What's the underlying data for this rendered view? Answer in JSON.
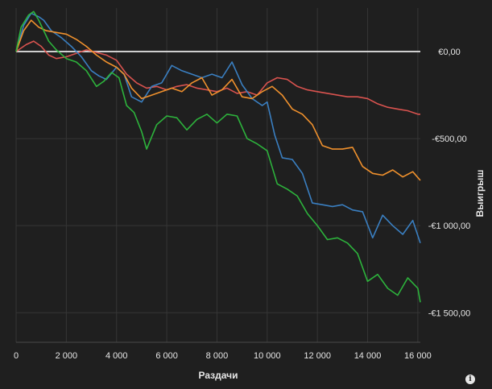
{
  "chart_data": {
    "type": "line",
    "title": "",
    "xlabel": "Раздачи",
    "ylabel": "Выигрыш",
    "xlim": [
      0,
      16100
    ],
    "ylim": [
      -1670,
      250
    ],
    "grid": true,
    "x_ticks": [
      0,
      2000,
      4000,
      6000,
      8000,
      10000,
      12000,
      14000,
      16000
    ],
    "x_tick_labels": [
      "0",
      "2 000",
      "4 000",
      "6 000",
      "8 000",
      "10 000",
      "12 000",
      "14 000",
      "16 000"
    ],
    "y_ticks": [
      0,
      -500,
      -1000,
      -1500
    ],
    "y_tick_labels": [
      "€0,00",
      "-€500,00",
      "-€1 000,00",
      "-€1 500,00"
    ],
    "zero_line_color": "#cfcfcf",
    "series": [
      {
        "color": "#d9534f",
        "x": [
          0,
          400,
          700,
          1000,
          1300,
          1600,
          2000,
          2400,
          2800,
          3200,
          3600,
          4000,
          4400,
          4800,
          5200,
          5600,
          6000,
          6400,
          6800,
          7200,
          7600,
          8000,
          8400,
          8800,
          9200,
          9600,
          10000,
          10400,
          10800,
          11200,
          11600,
          12000,
          12400,
          12800,
          13200,
          13600,
          14000,
          14400,
          14800,
          15200,
          15600,
          16000,
          16100
        ],
        "y": [
          0,
          40,
          60,
          30,
          -20,
          -40,
          -30,
          -10,
          10,
          -5,
          -20,
          -50,
          -130,
          -180,
          -210,
          -200,
          -220,
          -200,
          -190,
          -210,
          -220,
          -230,
          -210,
          -240,
          -230,
          -250,
          -180,
          -150,
          -160,
          -200,
          -220,
          -230,
          -240,
          -250,
          -260,
          -260,
          -270,
          -300,
          -320,
          -330,
          -340,
          -360,
          -360
        ]
      },
      {
        "color": "#3a7fc1",
        "x": [
          0,
          300,
          600,
          900,
          1100,
          1400,
          1800,
          2200,
          2600,
          3000,
          3300,
          3600,
          4000,
          4300,
          4600,
          5000,
          5400,
          5800,
          6200,
          6600,
          7000,
          7400,
          7800,
          8200,
          8600,
          9000,
          9400,
          9800,
          10000,
          10300,
          10600,
          11000,
          11400,
          11800,
          12200,
          12600,
          13000,
          13400,
          13800,
          14200,
          14600,
          15000,
          15400,
          15800,
          16100
        ],
        "y": [
          0,
          150,
          220,
          200,
          180,
          120,
          80,
          30,
          -30,
          -110,
          -140,
          -160,
          -90,
          -130,
          -260,
          -290,
          -200,
          -180,
          -80,
          -110,
          -130,
          -150,
          -130,
          -150,
          -60,
          -190,
          -270,
          -310,
          -290,
          -480,
          -610,
          -620,
          -700,
          -870,
          -880,
          -890,
          -880,
          -910,
          -920,
          -1070,
          -940,
          -1000,
          -1050,
          -970,
          -1100
        ]
      },
      {
        "color": "#f0912d",
        "x": [
          0,
          300,
          600,
          900,
          1200,
          1600,
          2000,
          2400,
          2800,
          3200,
          3600,
          4000,
          4300,
          4600,
          5000,
          5400,
          5800,
          6200,
          6600,
          7000,
          7400,
          7800,
          8200,
          8600,
          9000,
          9400,
          9800,
          10200,
          10600,
          11000,
          11400,
          11800,
          12200,
          12600,
          13000,
          13400,
          13800,
          14200,
          14600,
          15000,
          15400,
          15800,
          16100
        ],
        "y": [
          0,
          120,
          180,
          140,
          120,
          110,
          100,
          70,
          30,
          -20,
          -60,
          -90,
          -130,
          -210,
          -270,
          -250,
          -230,
          -210,
          -230,
          -180,
          -150,
          -250,
          -220,
          -160,
          -260,
          -270,
          -230,
          -200,
          -250,
          -330,
          -360,
          -420,
          -540,
          -560,
          -560,
          -550,
          -660,
          -700,
          -710,
          -680,
          -720,
          -690,
          -740
        ]
      },
      {
        "color": "#2db33c",
        "x": [
          0,
          200,
          500,
          700,
          900,
          1100,
          1300,
          1600,
          2000,
          2400,
          2800,
          3200,
          3500,
          3800,
          4100,
          4400,
          4700,
          5000,
          5200,
          5600,
          6000,
          6400,
          6800,
          7200,
          7600,
          8000,
          8400,
          8800,
          9200,
          9600,
          10000,
          10400,
          10800,
          11200,
          11600,
          12000,
          12400,
          12800,
          13200,
          13600,
          14000,
          14400,
          14800,
          15200,
          15600,
          16000,
          16100
        ],
        "y": [
          0,
          140,
          210,
          230,
          180,
          120,
          60,
          10,
          -40,
          -60,
          -110,
          -200,
          -170,
          -120,
          -150,
          -310,
          -350,
          -460,
          -560,
          -420,
          -370,
          -380,
          -450,
          -390,
          -360,
          -410,
          -360,
          -370,
          -500,
          -530,
          -570,
          -760,
          -790,
          -830,
          -930,
          -1000,
          -1080,
          -1070,
          -1100,
          -1160,
          -1320,
          -1280,
          -1360,
          -1400,
          -1300,
          -1360,
          -1440
        ]
      }
    ]
  }
}
